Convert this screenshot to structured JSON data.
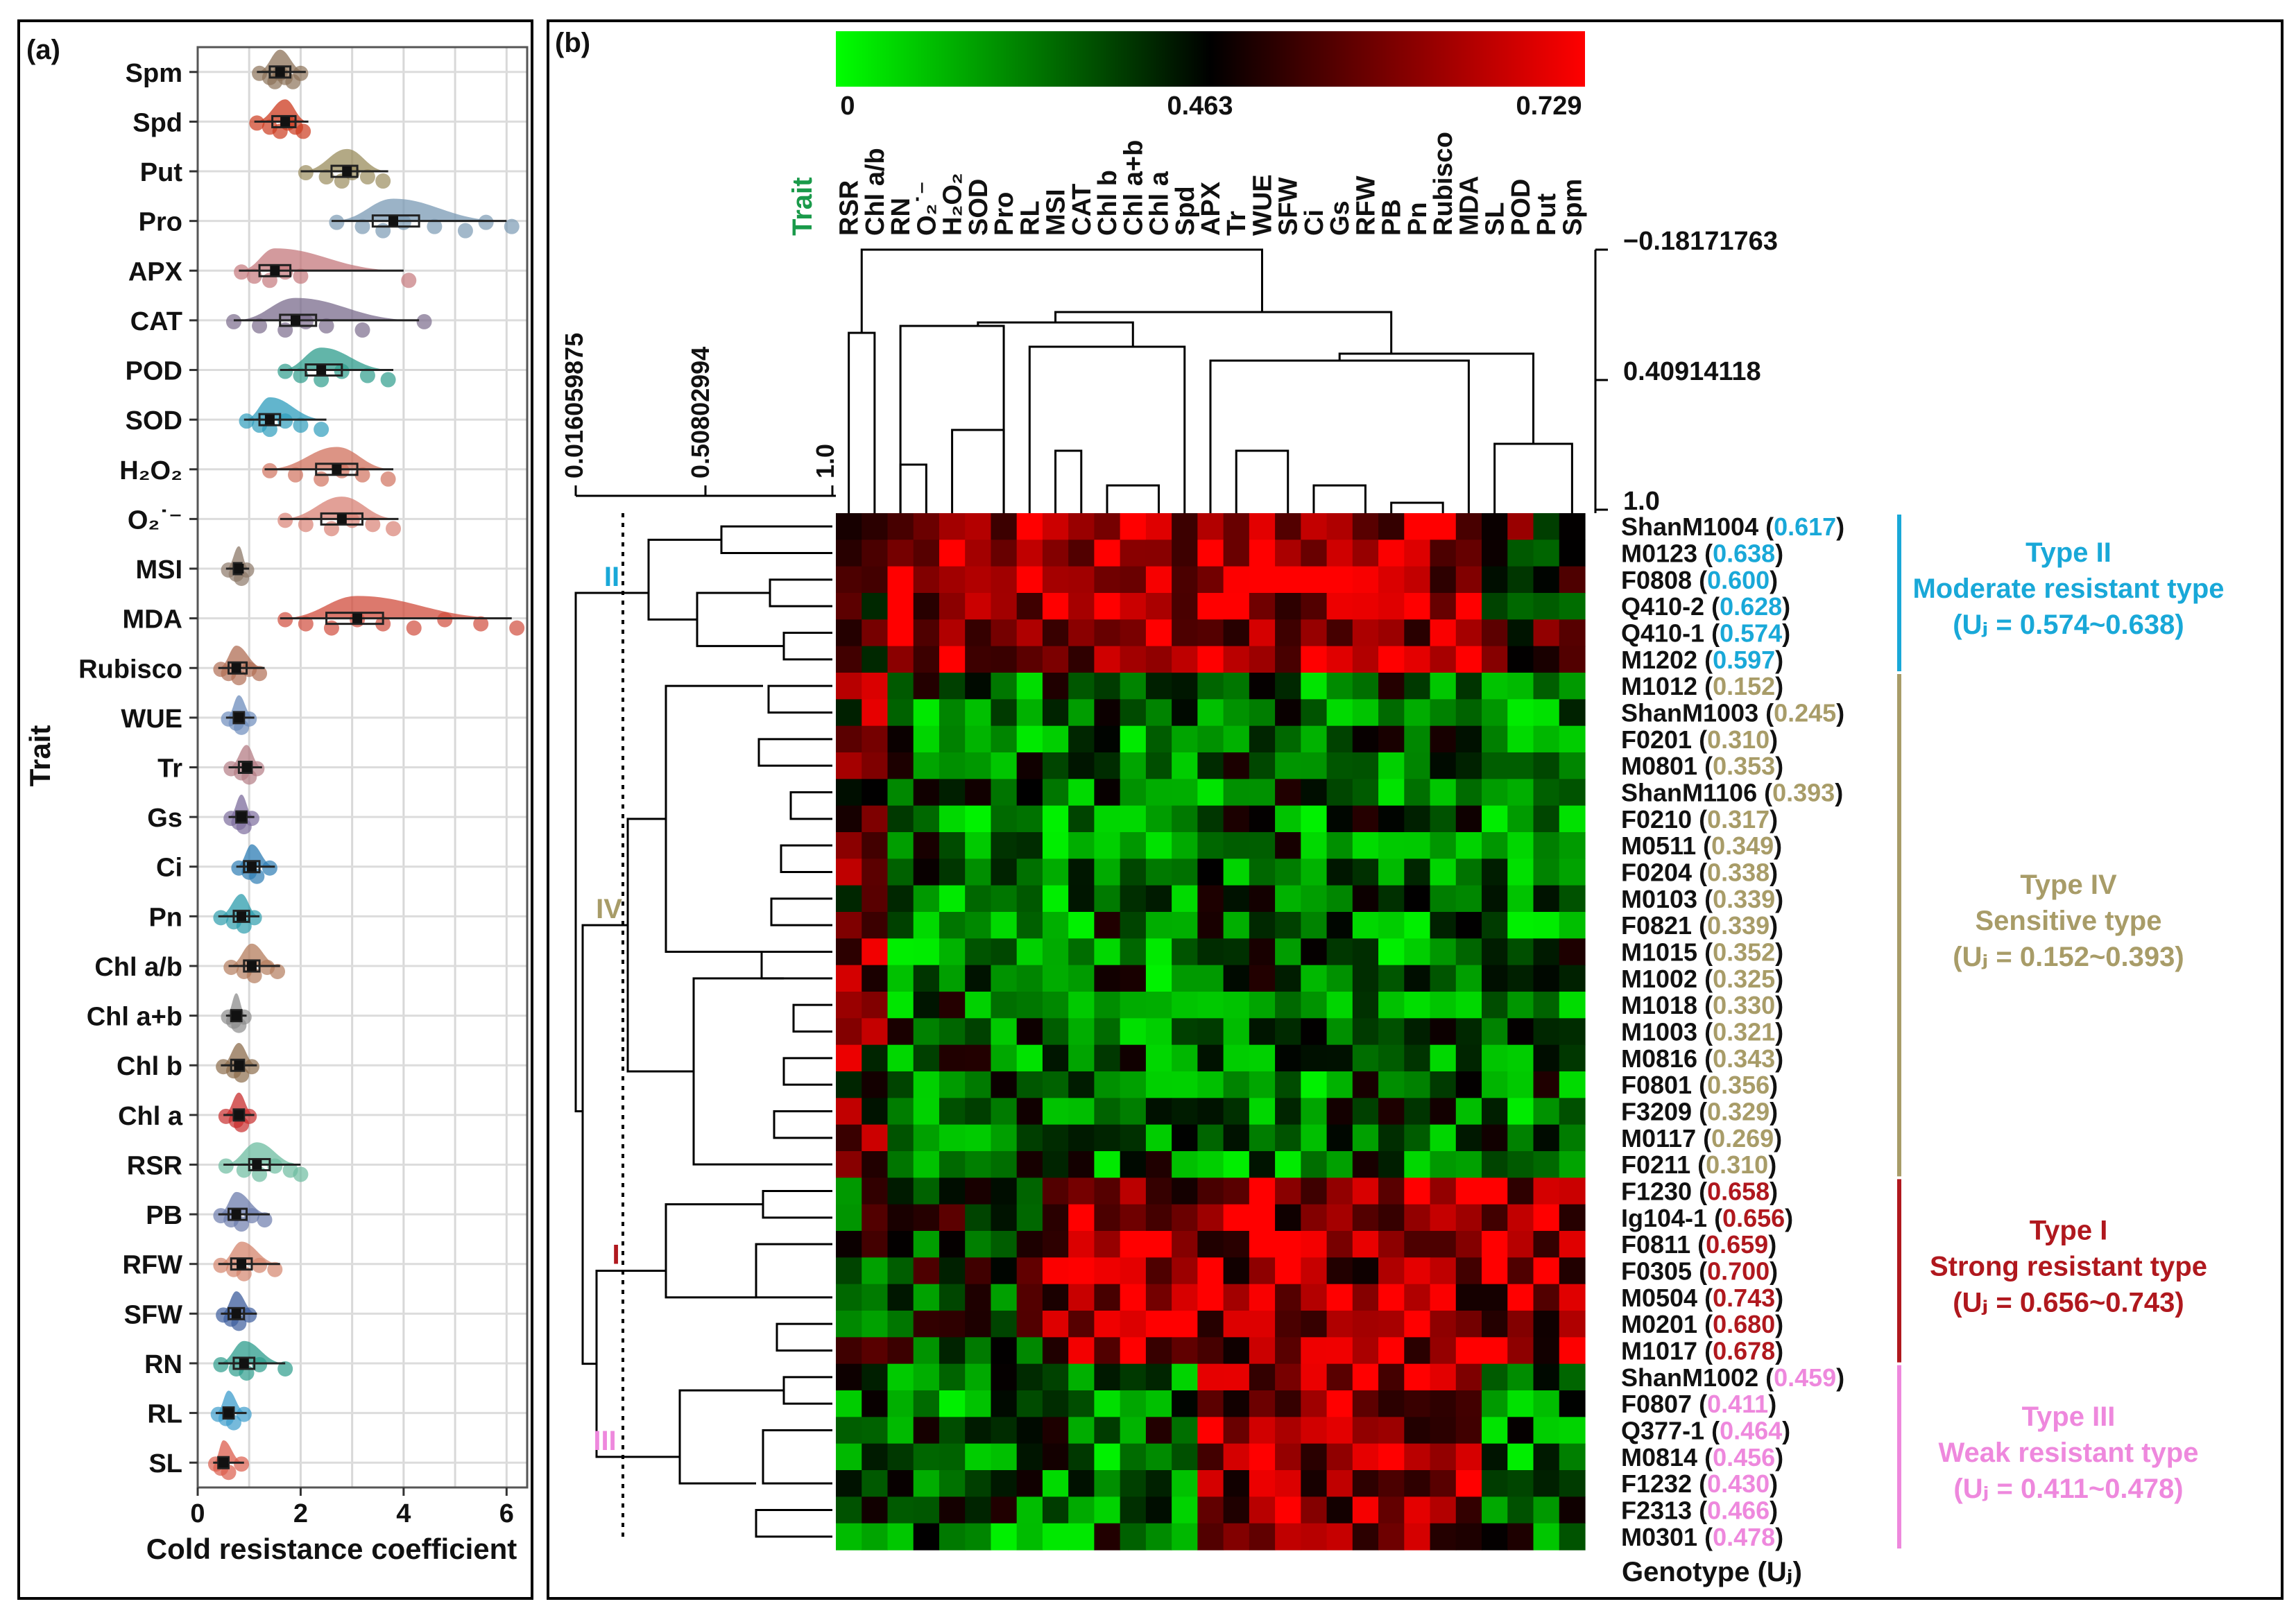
{
  "colors": {
    "type_ii": "#19a8d8",
    "type_iv": "#a89c68",
    "type_i": "#b0181e",
    "type_iii": "#ee88dd",
    "heat_low": "#00ff00",
    "heat_mid": "#000000",
    "heat_high": "#ff0000",
    "trait_label": "#1a9a4a"
  },
  "chart_data": [
    {
      "type": "scatter",
      "panel": "(a)",
      "ylabel": "Trait",
      "xlabel": "Cold resistance coefficient",
      "xlim": [
        0,
        6.4
      ],
      "xticks": [
        "0",
        "2",
        "4",
        "6"
      ],
      "grid": true,
      "traits": [
        {
          "name": "Spm",
          "color": "#8c7258",
          "min": 1.15,
          "q1": 1.4,
          "median": 1.6,
          "q3": 1.8,
          "max": 2.1,
          "points": [
            1.2,
            1.4,
            1.5,
            1.6,
            1.7,
            1.85,
            2.0
          ]
        },
        {
          "name": "Spd",
          "color": "#cc3a1e",
          "min": 1.1,
          "q1": 1.45,
          "median": 1.7,
          "q3": 1.9,
          "max": 2.15,
          "points": [
            1.15,
            1.4,
            1.6,
            1.75,
            1.9,
            2.05
          ]
        },
        {
          "name": "Put",
          "color": "#9a8c5c",
          "min": 2.0,
          "q1": 2.6,
          "median": 2.9,
          "q3": 3.1,
          "max": 3.7,
          "points": [
            2.1,
            2.5,
            2.8,
            3.0,
            3.3,
            3.6
          ]
        },
        {
          "name": "Pro",
          "color": "#7a9ab4",
          "min": 2.6,
          "q1": 3.4,
          "median": 3.8,
          "q3": 4.3,
          "max": 6.0,
          "points": [
            2.7,
            3.2,
            3.6,
            4.0,
            4.6,
            5.2,
            5.6,
            6.1
          ]
        },
        {
          "name": "APX",
          "color": "#c4787c",
          "min": 0.8,
          "q1": 1.2,
          "median": 1.5,
          "q3": 1.8,
          "max": 4.0,
          "points": [
            0.85,
            1.1,
            1.4,
            1.7,
            2.0,
            4.1
          ]
        },
        {
          "name": "CAT",
          "color": "#7a6b8c",
          "min": 0.7,
          "q1": 1.6,
          "median": 1.9,
          "q3": 2.3,
          "max": 4.3,
          "points": [
            0.7,
            1.2,
            1.7,
            2.1,
            2.5,
            3.2,
            4.4
          ]
        },
        {
          "name": "POD",
          "color": "#2e9c8c",
          "min": 1.6,
          "q1": 2.1,
          "median": 2.4,
          "q3": 2.8,
          "max": 3.8,
          "points": [
            1.7,
            2.0,
            2.4,
            2.8,
            3.3,
            3.7
          ]
        },
        {
          "name": "SOD",
          "color": "#2e9cbc",
          "min": 0.9,
          "q1": 1.2,
          "median": 1.4,
          "q3": 1.6,
          "max": 2.5,
          "points": [
            0.95,
            1.2,
            1.4,
            1.7,
            2.0,
            2.4
          ]
        },
        {
          "name": "H₂O₂",
          "color": "#d0705c",
          "min": 1.3,
          "q1": 2.3,
          "median": 2.7,
          "q3": 3.1,
          "max": 3.8,
          "points": [
            1.4,
            1.9,
            2.4,
            2.8,
            3.2,
            3.7
          ]
        },
        {
          "name": "O₂˙⁻",
          "color": "#d88074",
          "min": 1.6,
          "q1": 2.4,
          "median": 2.8,
          "q3": 3.2,
          "max": 3.9,
          "points": [
            1.7,
            2.1,
            2.6,
            3.0,
            3.4,
            3.8
          ]
        },
        {
          "name": "MSI",
          "color": "#8c7868",
          "min": 0.55,
          "q1": 0.7,
          "median": 0.8,
          "q3": 0.85,
          "max": 1.0,
          "points": [
            0.6,
            0.75,
            0.85,
            0.95
          ]
        },
        {
          "name": "MDA",
          "color": "#d04c3c",
          "min": 1.6,
          "q1": 2.5,
          "median": 3.1,
          "q3": 3.6,
          "max": 6.1,
          "points": [
            1.7,
            2.1,
            2.6,
            3.1,
            3.6,
            4.2,
            4.8,
            5.5,
            6.2
          ]
        },
        {
          "name": "Rubisco",
          "color": "#b06e54",
          "min": 0.4,
          "q1": 0.6,
          "median": 0.75,
          "q3": 0.95,
          "max": 1.3,
          "points": [
            0.45,
            0.6,
            0.8,
            1.0,
            1.2
          ]
        },
        {
          "name": "WUE",
          "color": "#6c8cbc",
          "min": 0.55,
          "q1": 0.7,
          "median": 0.8,
          "q3": 0.9,
          "max": 1.1,
          "points": [
            0.6,
            0.75,
            0.85,
            1.0
          ]
        },
        {
          "name": "Tr",
          "color": "#b47c84",
          "min": 0.6,
          "q1": 0.8,
          "median": 0.95,
          "q3": 1.05,
          "max": 1.25,
          "points": [
            0.65,
            0.85,
            1.0,
            1.15
          ]
        },
        {
          "name": "Gs",
          "color": "#7c6c9c",
          "min": 0.6,
          "q1": 0.75,
          "median": 0.85,
          "q3": 0.95,
          "max": 1.1,
          "points": [
            0.65,
            0.8,
            0.9,
            1.05
          ]
        },
        {
          "name": "Ci",
          "color": "#2c7cb4",
          "min": 0.75,
          "q1": 0.9,
          "median": 1.05,
          "q3": 1.2,
          "max": 1.5,
          "points": [
            0.8,
            1.0,
            1.15,
            1.4
          ]
        },
        {
          "name": "Pn",
          "color": "#2c9cac",
          "min": 0.4,
          "q1": 0.7,
          "median": 0.85,
          "q3": 1.0,
          "max": 1.2,
          "points": [
            0.45,
            0.7,
            0.9,
            1.1
          ]
        },
        {
          "name": "Chl a/b",
          "color": "#b47c5c",
          "min": 0.6,
          "q1": 0.9,
          "median": 1.05,
          "q3": 1.2,
          "max": 1.6,
          "points": [
            0.65,
            0.9,
            1.1,
            1.35,
            1.55
          ]
        },
        {
          "name": "Chl a+b",
          "color": "#8c8c8c",
          "min": 0.55,
          "q1": 0.65,
          "median": 0.75,
          "q3": 0.85,
          "max": 0.95,
          "points": [
            0.6,
            0.7,
            0.8,
            0.9
          ]
        },
        {
          "name": "Chl b",
          "color": "#8c6c4c",
          "min": 0.45,
          "q1": 0.65,
          "median": 0.8,
          "q3": 0.9,
          "max": 1.15,
          "points": [
            0.5,
            0.7,
            0.85,
            1.05
          ]
        },
        {
          "name": "Chl a",
          "color": "#c82c2c",
          "min": 0.5,
          "q1": 0.7,
          "median": 0.8,
          "q3": 0.9,
          "max": 1.1,
          "points": [
            0.55,
            0.75,
            0.85,
            1.0
          ]
        },
        {
          "name": "RSR",
          "color": "#6cbca0",
          "min": 0.5,
          "q1": 1.0,
          "median": 1.15,
          "q3": 1.4,
          "max": 2.0,
          "points": [
            0.55,
            0.9,
            1.2,
            1.5,
            1.8,
            2.0
          ]
        },
        {
          "name": "PB",
          "color": "#6c7cac",
          "min": 0.4,
          "q1": 0.6,
          "median": 0.75,
          "q3": 0.95,
          "max": 1.4,
          "points": [
            0.45,
            0.65,
            0.85,
            1.05,
            1.3
          ]
        },
        {
          "name": "RFW",
          "color": "#d4846c",
          "min": 0.4,
          "q1": 0.65,
          "median": 0.85,
          "q3": 1.05,
          "max": 1.6,
          "points": [
            0.45,
            0.7,
            0.9,
            1.2,
            1.5
          ]
        },
        {
          "name": "SFW",
          "color": "#3c5c9c",
          "min": 0.45,
          "q1": 0.6,
          "median": 0.75,
          "q3": 0.9,
          "max": 1.15,
          "points": [
            0.5,
            0.65,
            0.8,
            1.0
          ]
        },
        {
          "name": "RN",
          "color": "#2c9c8c",
          "min": 0.4,
          "q1": 0.7,
          "median": 0.9,
          "q3": 1.1,
          "max": 1.7,
          "points": [
            0.45,
            0.75,
            0.95,
            1.2,
            1.7
          ]
        },
        {
          "name": "RL",
          "color": "#3c9ccc",
          "min": 0.35,
          "q1": 0.5,
          "median": 0.6,
          "q3": 0.7,
          "max": 0.95,
          "points": [
            0.4,
            0.55,
            0.7,
            0.9
          ]
        },
        {
          "name": "SL",
          "color": "#dc5c4c",
          "min": 0.3,
          "q1": 0.4,
          "median": 0.5,
          "q3": 0.6,
          "max": 0.9,
          "points": [
            0.35,
            0.45,
            0.6,
            0.85
          ]
        }
      ]
    },
    {
      "type": "heatmap",
      "panel": "(b)",
      "colorbar": {
        "min": "0",
        "mid": "0.463",
        "max": "0.729"
      },
      "trait_header": "Trait",
      "trait_order": [
        "RSR",
        "Chl a/b",
        "RN",
        "O₂˙⁻",
        "H₂O₂",
        "SOD",
        "Pro",
        "RL",
        "MSI",
        "CAT",
        "Chl b",
        "Chl a+b",
        "Chl a",
        "Spd",
        "APX",
        "Tr",
        "WUE",
        "SFW",
        "Ci",
        "Gs",
        "RFW",
        "PB",
        "Pn",
        "Rubisco",
        "MDA",
        "SL",
        "POD",
        "Put",
        "Spm"
      ],
      "col_dendro_scale": [
        "−0.18171763",
        "0.40914118",
        "1.0"
      ],
      "row_dendro_scale": [
        "0.016059875",
        "0.50802994",
        "1.0"
      ],
      "genotype_footer": "Genotype (Uⱼ)",
      "genotypes": [
        {
          "name": "ShanM1004",
          "u": "0.617",
          "group": "II"
        },
        {
          "name": "M0123",
          "u": "0.638",
          "group": "II"
        },
        {
          "name": "F0808",
          "u": "0.600",
          "group": "II"
        },
        {
          "name": "Q410-2",
          "u": "0.628",
          "group": "II"
        },
        {
          "name": "Q410-1",
          "u": "0.574",
          "group": "II"
        },
        {
          "name": "M1202",
          "u": "0.597",
          "group": "II"
        },
        {
          "name": "M1012",
          "u": "0.152",
          "group": "IV"
        },
        {
          "name": "ShanM1003",
          "u": "0.245",
          "group": "IV"
        },
        {
          "name": "F0201",
          "u": "0.310",
          "group": "IV"
        },
        {
          "name": "M0801",
          "u": "0.353",
          "group": "IV"
        },
        {
          "name": "ShanM1106",
          "u": "0.393",
          "group": "IV"
        },
        {
          "name": "F0210",
          "u": "0.317",
          "group": "IV"
        },
        {
          "name": "M0511",
          "u": "0.349",
          "group": "IV"
        },
        {
          "name": "F0204",
          "u": "0.338",
          "group": "IV"
        },
        {
          "name": "M0103",
          "u": "0.339",
          "group": "IV"
        },
        {
          "name": "F0821",
          "u": "0.339",
          "group": "IV"
        },
        {
          "name": "M1015",
          "u": "0.352",
          "group": "IV"
        },
        {
          "name": "M1002",
          "u": "0.325",
          "group": "IV"
        },
        {
          "name": "M1018",
          "u": "0.330",
          "group": "IV"
        },
        {
          "name": "M1003",
          "u": "0.321",
          "group": "IV"
        },
        {
          "name": "M0816",
          "u": "0.343",
          "group": "IV"
        },
        {
          "name": "F0801",
          "u": "0.356",
          "group": "IV"
        },
        {
          "name": "F3209",
          "u": "0.329",
          "group": "IV"
        },
        {
          "name": "M0117",
          "u": "0.269",
          "group": "IV"
        },
        {
          "name": "F0211",
          "u": "0.310",
          "group": "IV"
        },
        {
          "name": "F1230",
          "u": "0.658",
          "group": "I"
        },
        {
          "name": "Ig104-1",
          "u": "0.656",
          "group": "I"
        },
        {
          "name": "F0811",
          "u": "0.659",
          "group": "I"
        },
        {
          "name": "F0305",
          "u": "0.700",
          "group": "I"
        },
        {
          "name": "M0504",
          "u": "0.743",
          "group": "I"
        },
        {
          "name": "M0201",
          "u": "0.680",
          "group": "I"
        },
        {
          "name": "M1017",
          "u": "0.678",
          "group": "I"
        },
        {
          "name": "ShanM1002",
          "u": "0.459",
          "group": "III"
        },
        {
          "name": "F0807",
          "u": "0.411",
          "group": "III"
        },
        {
          "name": "Q377-1",
          "u": "0.464",
          "group": "III"
        },
        {
          "name": "M0814",
          "u": "0.456",
          "group": "III"
        },
        {
          "name": "F1232",
          "u": "0.430",
          "group": "III"
        },
        {
          "name": "F2313",
          "u": "0.466",
          "group": "III"
        },
        {
          "name": "M0301",
          "u": "0.478",
          "group": "III"
        }
      ],
      "groups": [
        {
          "id": "II",
          "roman": "II",
          "title": "Type II",
          "subtitle": "Moderate resistant type",
          "range": "(Uⱼ = 0.574~0.638)",
          "colorKey": "type_ii",
          "start": 0,
          "end": 5
        },
        {
          "id": "IV",
          "roman": "IV",
          "title": "Type IV",
          "subtitle": "Sensitive type",
          "range": "(Uⱼ = 0.152~0.393)",
          "colorKey": "type_iv",
          "start": 6,
          "end": 24
        },
        {
          "id": "I",
          "roman": "I",
          "title": "Type I",
          "subtitle": "Strong resistant type",
          "range": "(Uⱼ = 0.656~0.743)",
          "colorKey": "type_i",
          "start": 25,
          "end": 31
        },
        {
          "id": "III",
          "roman": "III",
          "title": "Type III",
          "subtitle": "Weak resistant type",
          "range": "(Uⱼ = 0.411~0.478)",
          "colorKey": "type_iii",
          "start": 32,
          "end": 38
        }
      ]
    }
  ]
}
